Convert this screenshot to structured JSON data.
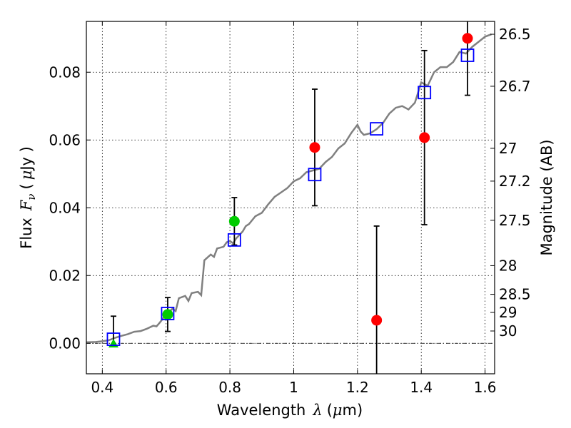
{
  "chart_data": {
    "type": "scatter",
    "xlabel": {
      "text": "Wavelength",
      "symbol": "λ",
      "unit_open": "(",
      "unit_mu": "μ",
      "unit_rest": "m)"
    },
    "ylabel": {
      "text": "Flux",
      "symbol": "F",
      "sub": "ν",
      "unit_open": "(",
      "unit_mu": "μ",
      "unit_rest": "Jy )"
    },
    "y2label": "Magnitude (AB)",
    "xlim": [
      0.35,
      1.63
    ],
    "ylim": [
      -0.009,
      0.095
    ],
    "grid": true,
    "x_ticks": [
      {
        "v": 0.4,
        "label": "0.4"
      },
      {
        "v": 0.6,
        "label": "0.6"
      },
      {
        "v": 0.8,
        "label": "0.8"
      },
      {
        "v": 1.0,
        "label": "1"
      },
      {
        "v": 1.2,
        "label": "1.2"
      },
      {
        "v": 1.4,
        "label": "1.4"
      },
      {
        "v": 1.6,
        "label": "1.6"
      }
    ],
    "y_ticks": [
      {
        "v": 0.0,
        "label": "0.00"
      },
      {
        "v": 0.02,
        "label": "0.02"
      },
      {
        "v": 0.04,
        "label": "0.04"
      },
      {
        "v": 0.06,
        "label": "0.06"
      },
      {
        "v": 0.08,
        "label": "0.08"
      }
    ],
    "y2_ticks": [
      {
        "mag": 26.5,
        "label": "26.5"
      },
      {
        "mag": 26.7,
        "label": "26.7"
      },
      {
        "mag": 27,
        "label": "27"
      },
      {
        "mag": 27.2,
        "label": "27.2"
      },
      {
        "mag": 27.5,
        "label": "27.5"
      },
      {
        "mag": 28,
        "label": "28"
      },
      {
        "mag": 28.5,
        "label": "28.5"
      },
      {
        "mag": 29,
        "label": "29"
      },
      {
        "mag": 30,
        "label": "30"
      }
    ],
    "model_curve": {
      "color": "#808080",
      "points": [
        [
          0.35,
          0.0003
        ],
        [
          0.38,
          0.0004
        ],
        [
          0.4,
          0.0006
        ],
        [
          0.42,
          0.0009
        ],
        [
          0.44,
          0.0016
        ],
        [
          0.46,
          0.0022
        ],
        [
          0.48,
          0.0027
        ],
        [
          0.5,
          0.0034
        ],
        [
          0.52,
          0.0036
        ],
        [
          0.54,
          0.0043
        ],
        [
          0.56,
          0.0052
        ],
        [
          0.57,
          0.005
        ],
        [
          0.58,
          0.0061
        ],
        [
          0.6,
          0.0085
        ],
        [
          0.62,
          0.0102
        ],
        [
          0.63,
          0.0095
        ],
        [
          0.64,
          0.0133
        ],
        [
          0.66,
          0.014
        ],
        [
          0.67,
          0.0125
        ],
        [
          0.68,
          0.0148
        ],
        [
          0.7,
          0.0152
        ],
        [
          0.71,
          0.0142
        ],
        [
          0.72,
          0.0245
        ],
        [
          0.74,
          0.0262
        ],
        [
          0.75,
          0.0255
        ],
        [
          0.76,
          0.028
        ],
        [
          0.78,
          0.0285
        ],
        [
          0.79,
          0.0298
        ],
        [
          0.8,
          0.0302
        ],
        [
          0.81,
          0.0295
        ],
        [
          0.82,
          0.031
        ],
        [
          0.84,
          0.033
        ],
        [
          0.85,
          0.0346
        ],
        [
          0.86,
          0.0352
        ],
        [
          0.88,
          0.0375
        ],
        [
          0.9,
          0.0385
        ],
        [
          0.92,
          0.041
        ],
        [
          0.94,
          0.0432
        ],
        [
          0.96,
          0.0445
        ],
        [
          0.98,
          0.0458
        ],
        [
          1.0,
          0.0478
        ],
        [
          1.02,
          0.0487
        ],
        [
          1.04,
          0.0505
        ],
        [
          1.06,
          0.051
        ],
        [
          1.08,
          0.0515
        ],
        [
          1.1,
          0.0535
        ],
        [
          1.12,
          0.055
        ],
        [
          1.14,
          0.0575
        ],
        [
          1.16,
          0.059
        ],
        [
          1.18,
          0.062
        ],
        [
          1.2,
          0.0645
        ],
        [
          1.21,
          0.0625
        ],
        [
          1.22,
          0.0615
        ],
        [
          1.24,
          0.062
        ],
        [
          1.26,
          0.0632
        ],
        [
          1.28,
          0.065
        ],
        [
          1.3,
          0.0678
        ],
        [
          1.32,
          0.0695
        ],
        [
          1.34,
          0.07
        ],
        [
          1.36,
          0.069
        ],
        [
          1.38,
          0.071
        ],
        [
          1.4,
          0.077
        ],
        [
          1.42,
          0.076
        ],
        [
          1.44,
          0.08
        ],
        [
          1.46,
          0.0815
        ],
        [
          1.48,
          0.0815
        ],
        [
          1.5,
          0.083
        ],
        [
          1.52,
          0.086
        ],
        [
          1.54,
          0.0855
        ],
        [
          1.56,
          0.0875
        ],
        [
          1.58,
          0.089
        ],
        [
          1.6,
          0.0905
        ],
        [
          1.62,
          0.0912
        ]
      ]
    },
    "model_points": {
      "color": "#0000ff",
      "points": [
        [
          0.435,
          0.0012
        ],
        [
          0.605,
          0.0088
        ],
        [
          0.814,
          0.0305
        ],
        [
          1.066,
          0.0498
        ],
        [
          1.26,
          0.0633
        ],
        [
          1.41,
          0.074
        ],
        [
          1.545,
          0.085
        ]
      ]
    },
    "observed_green": {
      "color": "#00cc00",
      "points": [
        {
          "x": 0.605,
          "y": 0.0085,
          "err": 0.005
        },
        {
          "x": 0.814,
          "y": 0.036,
          "err": 0.007
        }
      ],
      "triangle": {
        "x": 0.435,
        "y": -0.0004,
        "err_lo": 0,
        "err_hi": 0.008
      }
    },
    "observed_red": {
      "color": "#ff0000",
      "points": [
        {
          "x": 1.066,
          "y": 0.0578,
          "err": 0.0172
        },
        {
          "x": 1.26,
          "y": 0.0068,
          "err": 0.0278
        },
        {
          "x": 1.41,
          "y": 0.0607,
          "err": 0.0257
        },
        {
          "x": 1.545,
          "y": 0.09,
          "err": 0.0168
        }
      ]
    },
    "errorbars": [
      {
        "x": 0.435,
        "lo": -0.0004,
        "hi": 0.008
      },
      {
        "x": 0.605,
        "lo": 0.0035,
        "hi": 0.0135
      },
      {
        "x": 0.814,
        "lo": 0.029,
        "hi": 0.043
      },
      {
        "x": 1.066,
        "lo": 0.0406,
        "hi": 0.075
      },
      {
        "x": 1.26,
        "lo": -0.021,
        "hi": 0.0346
      },
      {
        "x": 1.41,
        "lo": 0.035,
        "hi": 0.0864
      },
      {
        "x": 1.545,
        "lo": 0.0732,
        "hi": 0.1068
      }
    ]
  }
}
